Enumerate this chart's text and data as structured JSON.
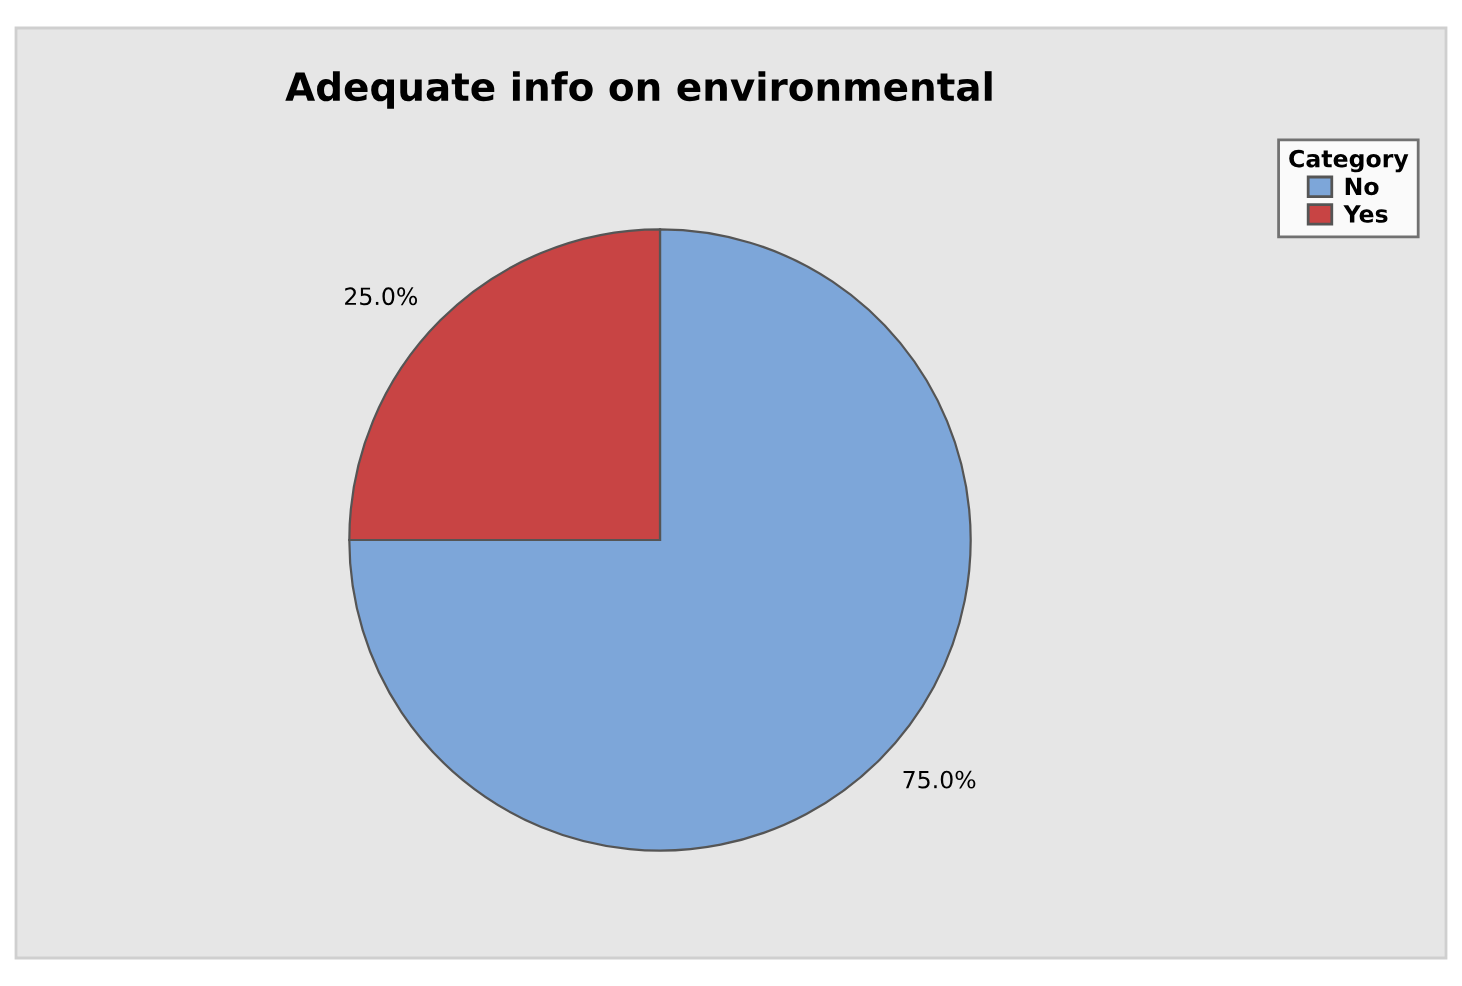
{
  "chart_data": {
    "type": "pie",
    "title": "Adequate info on environmental",
    "legend_title": "Category",
    "categories": [
      "No",
      "Yes"
    ],
    "values": [
      75,
      25
    ],
    "colors": [
      "#7da6d9",
      "#c84444"
    ],
    "value_labels": [
      "75.0%",
      "25.0%"
    ],
    "legend": "top right"
  }
}
